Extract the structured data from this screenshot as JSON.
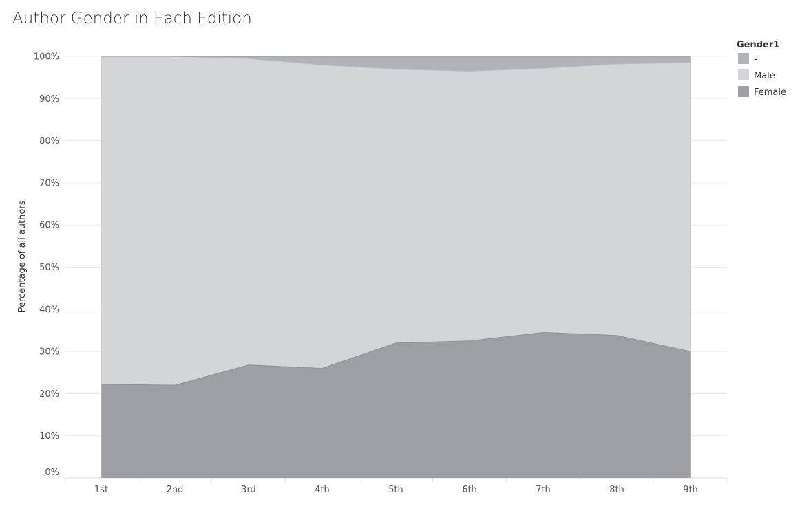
{
  "chart_data": {
    "type": "area",
    "stacked": true,
    "normalized": true,
    "title": "Author Gender in Each Edition",
    "xlabel": "",
    "ylabel": "Percentage of all authors",
    "categories": [
      "1st",
      "2nd",
      "3rd",
      "4th",
      "5th",
      "6th",
      "7th",
      "8th",
      "9th"
    ],
    "ylim": [
      0,
      100
    ],
    "y_ticks": [
      "0%",
      "10%",
      "20%",
      "30%",
      "40%",
      "50%",
      "60%",
      "70%",
      "80%",
      "90%",
      "100%"
    ],
    "grid": true,
    "legend": {
      "title": "Gender1",
      "placement": "right",
      "items": [
        "-",
        "Male",
        "Female"
      ]
    },
    "series": [
      {
        "name": "Female",
        "color": "#9e9fa4",
        "values": [
          22.2,
          22.0,
          26.8,
          26.0,
          32.0,
          32.5,
          34.5,
          33.8,
          30.0
        ]
      },
      {
        "name": "Male",
        "color": "#d4d5d8",
        "values": [
          77.8,
          78.0,
          72.7,
          72.0,
          65.0,
          64.0,
          62.7,
          64.4,
          68.6
        ]
      },
      {
        "name": "-",
        "color": "#b0b3b8",
        "values": [
          0.0,
          0.0,
          0.5,
          2.0,
          3.0,
          3.5,
          2.8,
          1.8,
          1.4
        ]
      }
    ]
  }
}
